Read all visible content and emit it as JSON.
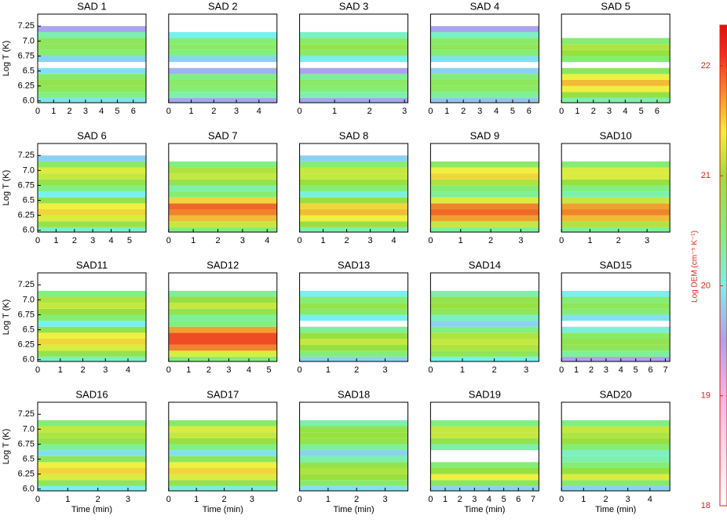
{
  "chart_data": [
    {
      "type": "heatmap",
      "title": "SAD 1",
      "ylabel": "Log T (K)",
      "xlim": [
        0,
        6.8
      ],
      "xticks": [
        0,
        1,
        2,
        3,
        4,
        5,
        6
      ],
      "ylim": [
        5.97,
        7.45
      ],
      "yticks": [
        {
          "value": 6,
          "label": "6.0"
        },
        6.25,
        6.5,
        6.75,
        {
          "value": 7,
          "label": "7.0"
        },
        7.25
      ],
      "y": [
        6.0,
        6.1,
        6.2,
        6.3,
        6.4,
        6.5,
        6.6,
        6.7,
        6.8,
        6.9,
        7.0,
        7.1,
        7.2
      ],
      "values": [
        19.9,
        20.5,
        20.8,
        20.9,
        20.7,
        19.9,
        null,
        19.8,
        20.6,
        20.8,
        20.8,
        20.3,
        19.5
      ]
    },
    {
      "type": "heatmap",
      "title": "SAD 2",
      "xlim": [
        0,
        4.8
      ],
      "xticks": [
        0,
        1,
        2,
        3,
        4
      ],
      "ylim": [
        5.97,
        7.45
      ],
      "y": [
        6.0,
        6.1,
        6.2,
        6.3,
        6.4,
        6.5,
        6.6,
        6.7,
        6.8,
        6.9,
        7.0,
        7.1,
        7.2
      ],
      "values": [
        19.5,
        20.3,
        20.6,
        20.7,
        20.5,
        19.6,
        null,
        19.8,
        20.5,
        20.7,
        20.6,
        20.0,
        null
      ]
    },
    {
      "type": "heatmap",
      "title": "SAD 3",
      "xlim": [
        0,
        3.1
      ],
      "xticks": [
        0,
        1,
        2,
        3
      ],
      "ylim": [
        5.97,
        7.45
      ],
      "y": [
        6.0,
        6.1,
        6.2,
        6.3,
        6.4,
        6.5,
        6.6,
        6.7,
        6.8,
        6.9,
        7.0,
        7.1,
        7.2
      ],
      "values": [
        19.5,
        20.3,
        20.6,
        20.7,
        20.4,
        19.5,
        null,
        20.0,
        20.7,
        20.9,
        20.7,
        20.2,
        null
      ]
    },
    {
      "type": "heatmap",
      "title": "SAD 4",
      "xlim": [
        0,
        6.6
      ],
      "xticks": [
        0,
        1,
        2,
        3,
        4,
        5,
        6
      ],
      "ylim": [
        5.97,
        7.45
      ],
      "y": [
        6.0,
        6.1,
        6.2,
        6.3,
        6.4,
        6.5,
        6.6,
        6.7,
        6.8,
        6.9,
        7.0,
        7.1,
        7.2
      ],
      "values": [
        19.7,
        20.4,
        20.7,
        20.8,
        20.6,
        19.8,
        null,
        19.9,
        20.6,
        20.8,
        20.7,
        20.2,
        19.5
      ]
    },
    {
      "type": "heatmap",
      "title": "SAD 5",
      "xlim": [
        0,
        6.8
      ],
      "xticks": [
        0,
        1,
        2,
        3,
        4,
        5,
        6
      ],
      "ylim": [
        5.97,
        7.45
      ],
      "y": [
        6.0,
        6.1,
        6.2,
        6.3,
        6.4,
        6.5,
        6.6,
        6.7,
        6.8,
        6.9,
        7.0,
        7.1,
        7.2
      ],
      "values": [
        20.3,
        21.0,
        21.4,
        21.6,
        21.4,
        20.8,
        null,
        20.6,
        21.0,
        21.1,
        20.6,
        null,
        null
      ]
    },
    {
      "type": "heatmap",
      "title": "SAD 6",
      "ylabel": "Log T (K)",
      "xlim": [
        0,
        5.9
      ],
      "xticks": [
        0,
        1,
        2,
        3,
        4,
        5
      ],
      "ylim": [
        5.97,
        7.45
      ],
      "yticks": [
        {
          "value": 6,
          "label": "6.0"
        },
        6.25,
        6.5,
        6.75,
        {
          "value": 7,
          "label": "7.0"
        },
        7.25
      ],
      "y": [
        6.0,
        6.1,
        6.2,
        6.3,
        6.4,
        6.5,
        6.6,
        6.7,
        6.8,
        6.9,
        7.0,
        7.1,
        7.2
      ],
      "values": [
        20.2,
        20.9,
        21.3,
        21.5,
        21.4,
        20.9,
        20.0,
        20.5,
        20.9,
        21.2,
        21.3,
        20.7,
        19.8
      ]
    },
    {
      "type": "heatmap",
      "title": "SAD 7",
      "xlim": [
        0,
        4.4
      ],
      "xticks": [
        0,
        1,
        2,
        3,
        4
      ],
      "ylim": [
        5.97,
        7.45
      ],
      "y": [
        6.0,
        6.1,
        6.2,
        6.3,
        6.4,
        6.5,
        6.6,
        6.7,
        6.8,
        6.9,
        7.0,
        7.1,
        7.2
      ],
      "values": [
        20.6,
        21.2,
        21.6,
        21.8,
        21.9,
        21.5,
        20.6,
        20.3,
        20.9,
        21.2,
        21.1,
        20.5,
        null
      ]
    },
    {
      "type": "heatmap",
      "title": "SAD 8",
      "xlim": [
        0,
        4.6
      ],
      "xticks": [
        0,
        1,
        2,
        3,
        4
      ],
      "ylim": [
        5.97,
        7.45
      ],
      "y": [
        6.0,
        6.1,
        6.2,
        6.3,
        6.4,
        6.5,
        6.6,
        6.7,
        6.8,
        6.9,
        7.0,
        7.1,
        7.2
      ],
      "values": [
        20.3,
        21.0,
        21.4,
        21.6,
        21.5,
        21.0,
        20.1,
        20.6,
        21.0,
        21.2,
        21.2,
        20.6,
        19.8
      ]
    },
    {
      "type": "heatmap",
      "title": "SAD 9",
      "xlim": [
        0,
        3.6
      ],
      "xticks": [
        0,
        1,
        2,
        3
      ],
      "ylim": [
        5.97,
        7.45
      ],
      "y": [
        6.0,
        6.1,
        6.2,
        6.3,
        6.4,
        6.5,
        6.6,
        6.7,
        6.8,
        6.9,
        7.0,
        7.1,
        7.2
      ],
      "values": [
        20.4,
        21.2,
        21.7,
        21.9,
        21.8,
        21.3,
        20.4,
        20.6,
        21.1,
        21.5,
        21.4,
        20.7,
        null
      ]
    },
    {
      "type": "heatmap",
      "title": "SAD10",
      "xlim": [
        0,
        3.8
      ],
      "xticks": [
        0,
        1,
        2,
        3
      ],
      "ylim": [
        5.97,
        7.45
      ],
      "y": [
        6.0,
        6.1,
        6.2,
        6.3,
        6.4,
        6.5,
        6.6,
        6.7,
        6.8,
        6.9,
        7.0,
        7.1,
        7.2
      ],
      "values": [
        20.4,
        21.1,
        21.6,
        21.8,
        21.7,
        21.2,
        20.3,
        20.5,
        21.0,
        21.3,
        21.3,
        20.6,
        null
      ]
    },
    {
      "type": "heatmap",
      "title": "SAD11",
      "ylabel": "Log T (K)",
      "xlim": [
        0,
        4.8
      ],
      "xticks": [
        0,
        1,
        2,
        3,
        4
      ],
      "ylim": [
        5.97,
        7.45
      ],
      "yticks": [
        {
          "value": 6,
          "label": "6.0"
        },
        6.25,
        6.5,
        6.75,
        {
          "value": 7,
          "label": "7.0"
        },
        7.25
      ],
      "y": [
        6.0,
        6.1,
        6.2,
        6.3,
        6.4,
        6.5,
        6.6,
        6.7,
        6.8,
        6.9,
        7.0,
        7.1,
        7.2
      ],
      "values": [
        20.2,
        20.9,
        21.3,
        21.5,
        21.4,
        20.9,
        20.0,
        20.6,
        21.0,
        21.2,
        21.1,
        20.5,
        null
      ]
    },
    {
      "type": "heatmap",
      "title": "SAD12",
      "xlim": [
        0,
        5.4
      ],
      "xticks": [
        0,
        1,
        2,
        3,
        4,
        5
      ],
      "ylim": [
        5.97,
        7.45
      ],
      "y": [
        6.0,
        6.1,
        6.2,
        6.3,
        6.4,
        6.5,
        6.6,
        6.7,
        6.8,
        6.9,
        7.0,
        7.1,
        7.2
      ],
      "values": [
        20.6,
        21.3,
        21.8,
        22.0,
        22.0,
        21.7,
        20.5,
        20.4,
        20.9,
        21.2,
        21.0,
        20.4,
        null
      ]
    },
    {
      "type": "heatmap",
      "title": "SAD13",
      "xlim": [
        0,
        3.8
      ],
      "xticks": [
        0,
        1,
        2,
        3
      ],
      "ylim": [
        5.97,
        7.45
      ],
      "y": [
        6.0,
        6.1,
        6.2,
        6.3,
        6.4,
        6.5,
        6.6,
        6.7,
        6.8,
        6.9,
        7.0,
        7.1,
        7.2
      ],
      "values": [
        19.8,
        20.6,
        21.0,
        21.2,
        21.0,
        20.4,
        null,
        20.0,
        20.7,
        20.9,
        20.6,
        20.0,
        null
      ]
    },
    {
      "type": "heatmap",
      "title": "SAD14",
      "xlim": [
        0,
        3.4
      ],
      "xticks": [
        0,
        1,
        2,
        3
      ],
      "ylim": [
        5.97,
        7.45
      ],
      "y": [
        6.0,
        6.1,
        6.2,
        6.3,
        6.4,
        6.5,
        6.6,
        6.7,
        6.8,
        6.9,
        7.0,
        7.1,
        7.2
      ],
      "values": [
        20.0,
        20.8,
        21.1,
        21.2,
        21.1,
        20.5,
        19.8,
        20.2,
        20.8,
        21.0,
        20.9,
        20.3,
        null
      ]
    },
    {
      "type": "heatmap",
      "title": "SAD15",
      "xlim": [
        0,
        7.3
      ],
      "xticks": [
        0,
        1,
        2,
        3,
        4,
        5,
        6,
        7
      ],
      "ylim": [
        5.97,
        7.45
      ],
      "y": [
        6.0,
        6.1,
        6.2,
        6.3,
        6.4,
        6.5,
        6.6,
        6.7,
        6.8,
        6.9,
        7.0,
        7.1,
        7.2
      ],
      "values": [
        19.5,
        20.4,
        20.8,
        20.9,
        20.7,
        20.1,
        null,
        19.9,
        20.6,
        20.8,
        20.6,
        20.0,
        null
      ]
    },
    {
      "type": "heatmap",
      "title": "SAD16",
      "ylabel": "Log T (K)",
      "xlabel": "Time (min)",
      "xlim": [
        0,
        3.6
      ],
      "xticks": [
        0,
        1,
        2,
        3
      ],
      "ylim": [
        5.97,
        7.45
      ],
      "yticks": [
        {
          "value": 6,
          "label": "6.0"
        },
        6.25,
        6.5,
        6.75,
        {
          "value": 7,
          "label": "7.0"
        },
        7.25
      ],
      "y": [
        6.0,
        6.1,
        6.2,
        6.3,
        6.4,
        6.5,
        6.6,
        6.7,
        6.8,
        6.9,
        7.0,
        7.1,
        7.2
      ],
      "values": [
        20.0,
        20.8,
        21.3,
        21.5,
        21.4,
        20.8,
        19.9,
        20.4,
        20.9,
        21.1,
        21.2,
        20.6,
        null
      ]
    },
    {
      "type": "heatmap",
      "title": "SAD17",
      "xlabel": "Time (min)",
      "xlim": [
        0,
        3.9
      ],
      "xticks": [
        0,
        1,
        2,
        3
      ],
      "ylim": [
        5.97,
        7.45
      ],
      "y": [
        6.0,
        6.1,
        6.2,
        6.3,
        6.4,
        6.5,
        6.6,
        6.7,
        6.8,
        6.9,
        7.0,
        7.1,
        7.2
      ],
      "values": [
        20.1,
        20.9,
        21.3,
        21.5,
        21.4,
        20.8,
        19.9,
        20.5,
        21.0,
        21.2,
        21.3,
        20.7,
        null
      ]
    },
    {
      "type": "heatmap",
      "title": "SAD18",
      "xlabel": "Time (min)",
      "xlim": [
        0,
        3.8
      ],
      "xticks": [
        0,
        1,
        2,
        3
      ],
      "ylim": [
        5.97,
        7.45
      ],
      "y": [
        6.0,
        6.1,
        6.2,
        6.3,
        6.4,
        6.5,
        6.6,
        6.7,
        6.8,
        6.9,
        7.0,
        7.1,
        7.2
      ],
      "values": [
        19.9,
        20.7,
        21.0,
        21.1,
        20.9,
        20.3,
        19.8,
        20.4,
        20.9,
        21.0,
        20.9,
        20.3,
        null
      ]
    },
    {
      "type": "heatmap",
      "title": "SAD19",
      "xlabel": "Time (min)",
      "xlim": [
        0,
        7.4
      ],
      "xticks": [
        0,
        1,
        2,
        3,
        4,
        5,
        6,
        7
      ],
      "ylim": [
        5.97,
        7.45
      ],
      "y": [
        6.0,
        6.1,
        6.2,
        6.3,
        6.4,
        6.5,
        6.6,
        6.7,
        6.8,
        6.9,
        7.0,
        7.1,
        7.2
      ],
      "values": [
        19.8,
        20.8,
        21.4,
        21.0,
        20.6,
        null,
        null,
        20.3,
        20.9,
        21.2,
        21.2,
        20.5,
        null
      ]
    },
    {
      "type": "heatmap",
      "title": "SAD20",
      "xlabel": "Time (min)",
      "xlim": [
        0,
        4.9
      ],
      "xticks": [
        0,
        1,
        2,
        3,
        4
      ],
      "ylim": [
        5.97,
        7.45
      ],
      "y": [
        6.0,
        6.1,
        6.2,
        6.3,
        6.4,
        6.5,
        6.6,
        6.7,
        6.8,
        6.9,
        7.0,
        7.1,
        7.2
      ],
      "values": [
        19.8,
        20.7,
        21.3,
        21.0,
        20.6,
        20.3,
        20.2,
        20.6,
        21.0,
        21.1,
        21.2,
        20.5,
        null
      ]
    }
  ],
  "colorbar": {
    "label": "Log DEM (cm⁻⁵ K⁻¹)",
    "lim": [
      18,
      22.37
    ],
    "ticks": [
      18,
      19,
      20,
      21,
      22
    ],
    "color": "#e02010",
    "colormap": [
      [
        18,
        "#ffffff"
      ],
      [
        19,
        "#f2b4e4"
      ],
      [
        19.5,
        "#a8a4f0"
      ],
      [
        20,
        "#78f0f0"
      ],
      [
        20.5,
        "#80f080"
      ],
      [
        21,
        "#98e040"
      ],
      [
        21.4,
        "#f0f040"
      ],
      [
        21.7,
        "#f0a030"
      ],
      [
        22.1,
        "#f03020"
      ],
      [
        22.37,
        "#e01010"
      ]
    ]
  }
}
